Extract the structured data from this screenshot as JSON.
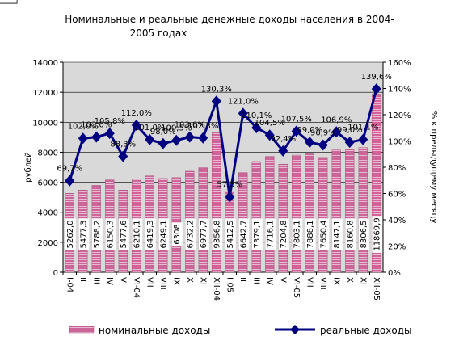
{
  "chart_data": {
    "type": "bar-line",
    "title": [
      "Номинальные и реальные денежные доходы населения в 2004-",
      "2005 годах"
    ],
    "y_label": "рублей",
    "y2_label": "% к предыдущему месяцу",
    "categories": [
      "I-04",
      "II",
      "III",
      "IV",
      "V",
      "VI-04",
      "VII",
      "VIII",
      "IX",
      "X",
      "XI",
      "XII-04",
      "I-05",
      "II",
      "III",
      "IV",
      "V",
      "VI-05",
      "VII",
      "VIII",
      "IX",
      "X",
      "XI",
      "XII-05"
    ],
    "series": [
      {
        "name": "номинальные доходы",
        "color": "#993366",
        "type": "bar",
        "axis": "y",
        "values": [
          5262.0,
          5477.3,
          5788.2,
          6150.3,
          5477.6,
          6210.1,
          6419.3,
          6249.1,
          6308,
          6732.2,
          6977.7,
          9356.8,
          5412.5,
          6642.7,
          7379.1,
          7716.1,
          7204.8,
          7803.1,
          7888.1,
          7650.4,
          8147.1,
          8160.8,
          8306.5,
          11869.9
        ],
        "value_labels": [
          "5262,0",
          "5477,3",
          "5788,2",
          "6150,3",
          "5477,6",
          "6210,1",
          "6419,3",
          "6249,1",
          "6308",
          "6732,2",
          "6977,7",
          "9356,8",
          "5412,5",
          "6642,7",
          "7379,1",
          "7716,1",
          "7204,8",
          "7803,1",
          "7888,1",
          "7650,4",
          "8147,1",
          "8160,8",
          "8306,5",
          "11869,9"
        ]
      },
      {
        "name": "реальные доходы",
        "color": "#000080",
        "type": "line",
        "axis": "y2",
        "values": [
          69.7,
          102.0,
          103.0,
          105.8,
          88.3,
          112.0,
          101.0,
          98.0,
          100.5,
          103.0,
          102.3,
          130.3,
          57.5,
          121.0,
          110.1,
          104.5,
          92.4,
          107.5,
          99.0,
          96.9,
          106.9,
          99.0,
          101.1,
          139.6
        ],
        "value_labels": [
          "69,7%",
          "102,0%",
          "103,0%",
          "105,8%",
          "88,3%",
          "112,0%",
          "101,0%",
          "98,0%",
          "100,5%",
          "103,0%",
          "102,3%",
          "130,3%",
          "57,5%",
          "121,0%",
          "110,1%",
          "104,5%",
          "92,4%",
          "107,5%",
          "99,0%",
          "96,9%",
          "106,9%",
          "99,0%",
          "101,1%",
          "139,6%"
        ]
      }
    ],
    "ylim": [
      0,
      14000
    ],
    "yticks": [
      0,
      2000,
      4000,
      6000,
      8000,
      10000,
      12000,
      14000
    ],
    "y2lim": [
      0,
      160
    ],
    "y2ticks": [
      {
        "value": 0,
        "label": "0%"
      },
      {
        "value": 20,
        "label": "20%"
      },
      {
        "value": 40,
        "label": "40%"
      },
      {
        "value": 60,
        "label": "60%"
      },
      {
        "value": 80,
        "label": "80%"
      },
      {
        "value": 100,
        "label": "100%"
      },
      {
        "value": 120,
        "label": "120%"
      },
      {
        "value": 140,
        "label": "140%"
      },
      {
        "value": 160,
        "label": "160%"
      }
    ],
    "grid": true,
    "legend": "bottom"
  }
}
